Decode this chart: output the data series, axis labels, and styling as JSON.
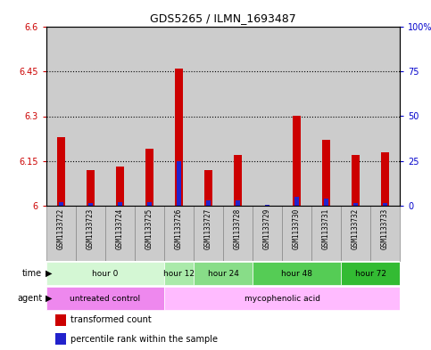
{
  "title": "GDS5265 / ILMN_1693487",
  "samples": [
    "GSM1133722",
    "GSM1133723",
    "GSM1133724",
    "GSM1133725",
    "GSM1133726",
    "GSM1133727",
    "GSM1133728",
    "GSM1133729",
    "GSM1133730",
    "GSM1133731",
    "GSM1133732",
    "GSM1133733"
  ],
  "red_values": [
    6.23,
    6.12,
    6.13,
    6.19,
    6.46,
    6.12,
    6.17,
    6.0,
    6.3,
    6.22,
    6.17,
    6.18
  ],
  "blue_values": [
    2.0,
    1.5,
    2.0,
    2.0,
    25.0,
    3.0,
    3.0,
    0.5,
    5.0,
    4.0,
    1.5,
    1.5
  ],
  "ylim_left": [
    6.0,
    6.6
  ],
  "ylim_right": [
    0,
    100
  ],
  "yticks_left": [
    6.0,
    6.15,
    6.3,
    6.45,
    6.6
  ],
  "yticks_right": [
    0,
    25,
    50,
    75,
    100
  ],
  "ytick_labels_left": [
    "6",
    "6.15",
    "6.3",
    "6.45",
    "6.6"
  ],
  "ytick_labels_right": [
    "0",
    "25",
    "50",
    "75",
    "100%"
  ],
  "hlines": [
    6.15,
    6.3,
    6.45
  ],
  "red_color": "#cc0000",
  "blue_color": "#2222cc",
  "time_groups": [
    {
      "label": "hour 0",
      "start": 0,
      "end": 3,
      "color": "#d4f7d4"
    },
    {
      "label": "hour 12",
      "start": 4,
      "end": 4,
      "color": "#aaeaaa"
    },
    {
      "label": "hour 24",
      "start": 5,
      "end": 6,
      "color": "#88dd88"
    },
    {
      "label": "hour 48",
      "start": 7,
      "end": 9,
      "color": "#55cc55"
    },
    {
      "label": "hour 72",
      "start": 10,
      "end": 11,
      "color": "#33bb33"
    }
  ],
  "agent_groups": [
    {
      "label": "untreated control",
      "start": 0,
      "end": 3,
      "color": "#ee88ee"
    },
    {
      "label": "mycophenolic acid",
      "start": 4,
      "end": 11,
      "color": "#ffbbff"
    }
  ],
  "time_row_label": "time",
  "agent_row_label": "agent",
  "legend_red": "transformed count",
  "legend_blue": "percentile rank within the sample",
  "background_color": "#ffffff",
  "plot_bg": "#ffffff",
  "tick_color_left": "#cc0000",
  "tick_color_right": "#0000cc",
  "sample_bg_color": "#cccccc",
  "sample_border_color": "#888888"
}
